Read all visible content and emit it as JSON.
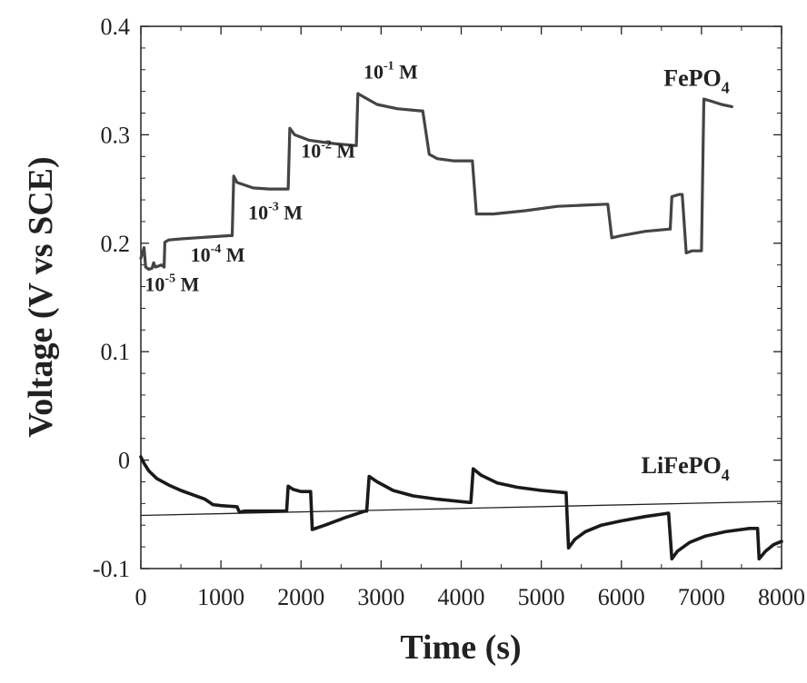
{
  "chart_data": {
    "type": "line",
    "xlabel": "Time (s)",
    "ylabel": "Voltage (V vs SCE)",
    "xlim": [
      0,
      8000
    ],
    "ylim": [
      -0.1,
      0.4
    ],
    "x_ticks": [
      "0",
      "1000",
      "2000",
      "3000",
      "4000",
      "5000",
      "6000",
      "7000",
      "8000"
    ],
    "y_ticks": [
      "-0.1",
      "0",
      "0.1",
      "0.2",
      "0.3",
      "0.4"
    ],
    "grid": false,
    "series": [
      {
        "name": "FePO4",
        "color": "#444444",
        "points": [
          [
            0,
            0.186
          ],
          [
            40,
            0.196
          ],
          [
            60,
            0.178
          ],
          [
            100,
            0.176
          ],
          [
            140,
            0.177
          ],
          [
            160,
            0.182
          ],
          [
            180,
            0.178
          ],
          [
            260,
            0.18
          ],
          [
            290,
            0.178
          ],
          [
            300,
            0.201
          ],
          [
            350,
            0.203
          ],
          [
            500,
            0.204
          ],
          [
            700,
            0.205
          ],
          [
            900,
            0.206
          ],
          [
            1120,
            0.207
          ],
          [
            1140,
            0.207
          ],
          [
            1160,
            0.262
          ],
          [
            1200,
            0.256
          ],
          [
            1400,
            0.251
          ],
          [
            1600,
            0.25
          ],
          [
            1820,
            0.25
          ],
          [
            1840,
            0.25
          ],
          [
            1860,
            0.306
          ],
          [
            1920,
            0.3
          ],
          [
            2100,
            0.295
          ],
          [
            2400,
            0.292
          ],
          [
            2680,
            0.29
          ],
          [
            2690,
            0.29
          ],
          [
            2710,
            0.338
          ],
          [
            2780,
            0.335
          ],
          [
            2950,
            0.328
          ],
          [
            3200,
            0.324
          ],
          [
            3500,
            0.322
          ],
          [
            3520,
            0.322
          ],
          [
            3600,
            0.282
          ],
          [
            3700,
            0.278
          ],
          [
            3900,
            0.276
          ],
          [
            4130,
            0.276
          ],
          [
            4140,
            0.276
          ],
          [
            4190,
            0.227
          ],
          [
            4400,
            0.227
          ],
          [
            4800,
            0.23
          ],
          [
            5200,
            0.234
          ],
          [
            5500,
            0.235
          ],
          [
            5820,
            0.236
          ],
          [
            5830,
            0.236
          ],
          [
            5880,
            0.205
          ],
          [
            6000,
            0.207
          ],
          [
            6300,
            0.211
          ],
          [
            6590,
            0.213
          ],
          [
            6610,
            0.213
          ],
          [
            6630,
            0.243
          ],
          [
            6720,
            0.245
          ],
          [
            6760,
            0.245
          ],
          [
            6810,
            0.191
          ],
          [
            6880,
            0.193
          ],
          [
            6960,
            0.193
          ],
          [
            7000,
            0.193
          ],
          [
            7030,
            0.333
          ],
          [
            7120,
            0.331
          ],
          [
            7250,
            0.328
          ],
          [
            7380,
            0.326
          ]
        ]
      },
      {
        "name": "LiFePO4",
        "color": "#1a1a1a",
        "points": [
          [
            0,
            0.003
          ],
          [
            40,
            -0.003
          ],
          [
            100,
            -0.01
          ],
          [
            200,
            -0.017
          ],
          [
            350,
            -0.023
          ],
          [
            500,
            -0.028
          ],
          [
            650,
            -0.032
          ],
          [
            800,
            -0.036
          ],
          [
            900,
            -0.041
          ],
          [
            1000,
            -0.042
          ],
          [
            1200,
            -0.043
          ],
          [
            1230,
            -0.048
          ],
          [
            1300,
            -0.047
          ],
          [
            1600,
            -0.047
          ],
          [
            1820,
            -0.047
          ],
          [
            1840,
            -0.024
          ],
          [
            1900,
            -0.027
          ],
          [
            2000,
            -0.029
          ],
          [
            2120,
            -0.029
          ],
          [
            2140,
            -0.064
          ],
          [
            2300,
            -0.06
          ],
          [
            2550,
            -0.053
          ],
          [
            2800,
            -0.047
          ],
          [
            2820,
            -0.047
          ],
          [
            2850,
            -0.015
          ],
          [
            2950,
            -0.02
          ],
          [
            3150,
            -0.028
          ],
          [
            3400,
            -0.033
          ],
          [
            3700,
            -0.036
          ],
          [
            4100,
            -0.039
          ],
          [
            4120,
            -0.039
          ],
          [
            4150,
            -0.008
          ],
          [
            4250,
            -0.014
          ],
          [
            4450,
            -0.021
          ],
          [
            4700,
            -0.025
          ],
          [
            5000,
            -0.028
          ],
          [
            5300,
            -0.03
          ],
          [
            5310,
            -0.03
          ],
          [
            5340,
            -0.081
          ],
          [
            5420,
            -0.073
          ],
          [
            5550,
            -0.066
          ],
          [
            5750,
            -0.06
          ],
          [
            6000,
            -0.056
          ],
          [
            6300,
            -0.052
          ],
          [
            6580,
            -0.049
          ],
          [
            6590,
            -0.049
          ],
          [
            6630,
            -0.091
          ],
          [
            6700,
            -0.084
          ],
          [
            6850,
            -0.076
          ],
          [
            7050,
            -0.07
          ],
          [
            7300,
            -0.066
          ],
          [
            7600,
            -0.063
          ],
          [
            7700,
            -0.063
          ],
          [
            7720,
            -0.091
          ],
          [
            7800,
            -0.084
          ],
          [
            7900,
            -0.078
          ],
          [
            8000,
            -0.075
          ]
        ]
      }
    ],
    "reference_line": {
      "color": "#222222",
      "points": [
        [
          0,
          -0.051
        ],
        [
          8000,
          -0.038
        ]
      ]
    },
    "series_labels": [
      {
        "name": "FePO4",
        "base": "FePO",
        "sub": "4",
        "x": 7350,
        "y": 0.345
      },
      {
        "name": "LiFePO4",
        "base": "LiFePO",
        "sub": "4",
        "x": 7350,
        "y": -0.012
      }
    ],
    "annotations": [
      {
        "base": "10",
        "exp": "-5",
        "unit": " M",
        "x": 50,
        "y": 0.156
      },
      {
        "base": "10",
        "exp": "-4",
        "unit": " M",
        "x": 620,
        "y": 0.183
      },
      {
        "base": "10",
        "exp": "-3",
        "unit": " M",
        "x": 1340,
        "y": 0.222
      },
      {
        "base": "10",
        "exp": "-2",
        "unit": " M",
        "x": 2000,
        "y": 0.279
      },
      {
        "base": "10",
        "exp": "-1",
        "unit": " M",
        "x": 2780,
        "y": 0.352
      }
    ]
  }
}
